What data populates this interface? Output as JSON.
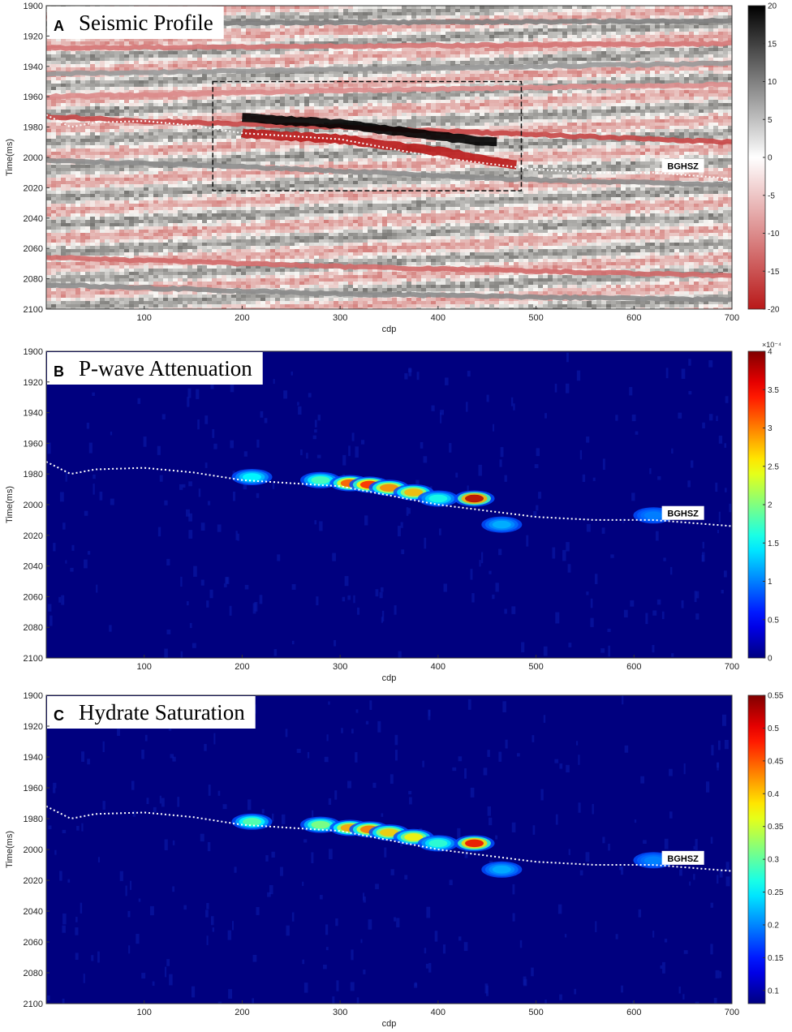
{
  "colors": {
    "seismic_positive": "#000000",
    "seismic_negative": "#b81c1c",
    "bghsz_line": "#ffffff",
    "jet_low": "#00007f",
    "jet_high": "#7f0000"
  },
  "chart_data": [
    {
      "panel": "A",
      "type": "heatmap",
      "title": "Seismic Profile",
      "xlabel": "cdp",
      "ylabel": "Time(ms)",
      "xlim": [
        0,
        700
      ],
      "ylim": [
        1900,
        2100
      ],
      "y_inverted": true,
      "xticks": [
        "100",
        "200",
        "300",
        "400",
        "500",
        "600",
        "700"
      ],
      "yticks": [
        "1900",
        "1920",
        "1940",
        "1960",
        "1980",
        "2000",
        "2020",
        "2040",
        "2060",
        "2080",
        "2100"
      ],
      "colormap": "gray-white-red seismic",
      "colorbar": {
        "min": -20,
        "max": 20,
        "ticks": [
          "20",
          "15",
          "10",
          "5",
          "0",
          "-5",
          "-10",
          "-15",
          "-20"
        ],
        "exponent": ""
      },
      "annotation": "BGHSZ",
      "highlight_box": {
        "x_range": [
          170,
          485
        ],
        "y_range": [
          1950,
          2022
        ]
      },
      "bghsz_curve": {
        "x": [
          0,
          25,
          50,
          100,
          150,
          200,
          300,
          400,
          500,
          560,
          620,
          700
        ],
        "y": [
          1972,
          1980,
          1977,
          1976,
          1979,
          1984,
          1988,
          2000,
          2008,
          2010,
          2010,
          2014
        ]
      },
      "layers": [
        {
          "x": [
            0,
            700
          ],
          "y": [
            1912,
            1910
          ],
          "amp": 10
        },
        {
          "x": [
            0,
            700
          ],
          "y": [
            1928,
            1925
          ],
          "amp": -12
        },
        {
          "x": [
            0,
            300,
            700
          ],
          "y": [
            1945,
            1942,
            1938
          ],
          "amp": 8
        },
        {
          "x": [
            0,
            300,
            700
          ],
          "y": [
            1960,
            1956,
            1952
          ],
          "amp": -10
        },
        {
          "x": [
            0,
            100,
            300,
            500,
            700
          ],
          "y": [
            1973,
            1976,
            1980,
            1985,
            1990
          ],
          "amp": -16
        },
        {
          "x": [
            200,
            300,
            400,
            460
          ],
          "y": [
            1974,
            1978,
            1986,
            1990
          ],
          "amp": 20
        },
        {
          "x": [
            200,
            300,
            400,
            480
          ],
          "y": [
            1984,
            1988,
            1996,
            2005
          ],
          "amp": -20
        },
        {
          "x": [
            0,
            200,
            500,
            700
          ],
          "y": [
            2002,
            2006,
            2015,
            2018
          ],
          "amp": 9
        },
        {
          "x": [
            0,
            300,
            700
          ],
          "y": [
            2066,
            2072,
            2078
          ],
          "amp": -13
        },
        {
          "x": [
            0,
            300,
            700
          ],
          "y": [
            2084,
            2090,
            2094
          ],
          "amp": 9
        }
      ]
    },
    {
      "panel": "B",
      "type": "heatmap",
      "title": "P-wave Attenuation",
      "xlabel": "cdp",
      "ylabel": "Time(ms)",
      "xlim": [
        0,
        700
      ],
      "ylim": [
        1900,
        2100
      ],
      "y_inverted": true,
      "xticks": [
        "100",
        "200",
        "300",
        "400",
        "500",
        "600",
        "700"
      ],
      "yticks": [
        "1900",
        "1920",
        "1940",
        "1960",
        "1980",
        "2000",
        "2020",
        "2040",
        "2060",
        "2080",
        "2100"
      ],
      "colormap": "jet",
      "colorbar": {
        "min": 0,
        "max": 4,
        "ticks": [
          "4",
          "3.5",
          "3",
          "2.5",
          "2",
          "1.5",
          "1",
          "0.5",
          "0"
        ],
        "exponent": "×10⁻⁴"
      },
      "annotation": "BGHSZ",
      "bghsz_curve": {
        "x": [
          0,
          25,
          50,
          100,
          150,
          200,
          300,
          400,
          500,
          560,
          620,
          700
        ],
        "y": [
          1972,
          1980,
          1977,
          1976,
          1979,
          1984,
          1988,
          2000,
          2008,
          2010,
          2010,
          2014
        ]
      },
      "anomalies": [
        {
          "x": 210,
          "y": 1982,
          "value": 1.5
        },
        {
          "x": 280,
          "y": 1984,
          "value": 1.8
        },
        {
          "x": 310,
          "y": 1986,
          "value": 3.2
        },
        {
          "x": 330,
          "y": 1987,
          "value": 3.4
        },
        {
          "x": 350,
          "y": 1989,
          "value": 3.0
        },
        {
          "x": 375,
          "y": 1992,
          "value": 2.8
        },
        {
          "x": 400,
          "y": 1996,
          "value": 1.6
        },
        {
          "x": 437,
          "y": 1996,
          "value": 3.8
        },
        {
          "x": 465,
          "y": 2013,
          "value": 1.2
        },
        {
          "x": 620,
          "y": 2007,
          "value": 1.0
        }
      ]
    },
    {
      "panel": "C",
      "type": "heatmap",
      "title": "Hydrate Saturation",
      "xlabel": "cdp",
      "ylabel": "Time(ms)",
      "xlim": [
        0,
        700
      ],
      "ylim": [
        1900,
        2100
      ],
      "y_inverted": true,
      "xticks": [
        "100",
        "200",
        "300",
        "400",
        "500",
        "600",
        "700"
      ],
      "yticks": [
        "1900",
        "1920",
        "1940",
        "1960",
        "1980",
        "2000",
        "2020",
        "2040",
        "2060",
        "2080",
        "2100"
      ],
      "colormap": "jet",
      "colorbar": {
        "min": 0.08,
        "max": 0.55,
        "ticks": [
          "0.55",
          "0.5",
          "0.45",
          "0.4",
          "0.35",
          "0.3",
          "0.25",
          "0.2",
          "0.15",
          "0.1"
        ],
        "exponent": ""
      },
      "annotation": "BGHSZ",
      "bghsz_curve": {
        "x": [
          0,
          25,
          50,
          100,
          150,
          200,
          300,
          400,
          500,
          560,
          620,
          700
        ],
        "y": [
          1972,
          1980,
          1977,
          1976,
          1979,
          1984,
          1988,
          2000,
          2008,
          2010,
          2010,
          2014
        ]
      },
      "anomalies": [
        {
          "x": 210,
          "y": 1982,
          "value": 0.3
        },
        {
          "x": 280,
          "y": 1984,
          "value": 0.32
        },
        {
          "x": 310,
          "y": 1986,
          "value": 0.42
        },
        {
          "x": 330,
          "y": 1987,
          "value": 0.44
        },
        {
          "x": 350,
          "y": 1989,
          "value": 0.4
        },
        {
          "x": 375,
          "y": 1992,
          "value": 0.38
        },
        {
          "x": 400,
          "y": 1996,
          "value": 0.28
        },
        {
          "x": 437,
          "y": 1996,
          "value": 0.5
        },
        {
          "x": 465,
          "y": 2013,
          "value": 0.22
        },
        {
          "x": 620,
          "y": 2007,
          "value": 0.2
        }
      ]
    }
  ]
}
